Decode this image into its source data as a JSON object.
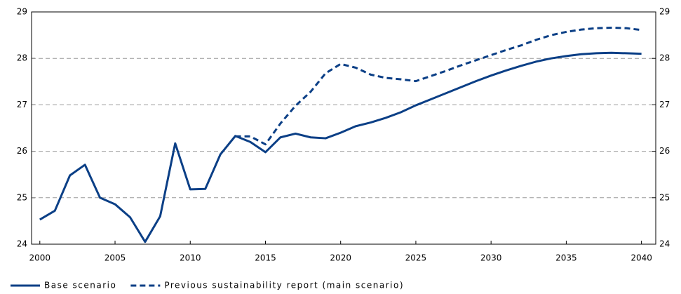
{
  "chart_data": {
    "type": "line",
    "x": [
      2000,
      2001,
      2002,
      2003,
      2004,
      2005,
      2006,
      2007,
      2008,
      2009,
      2010,
      2011,
      2012,
      2013,
      2014,
      2015,
      2016,
      2017,
      2018,
      2019,
      2020,
      2021,
      2022,
      2023,
      2024,
      2025,
      2026,
      2027,
      2028,
      2029,
      2030,
      2031,
      2032,
      2033,
      2034,
      2035,
      2036,
      2037,
      2038,
      2039,
      2040
    ],
    "series": [
      {
        "name": "Base scenario",
        "color": "#0b3f86",
        "dash": false,
        "values": [
          24.53,
          24.72,
          25.48,
          25.71,
          25.0,
          24.86,
          24.58,
          24.05,
          24.6,
          26.17,
          25.18,
          25.19,
          25.93,
          26.33,
          26.2,
          25.98,
          26.3,
          26.38,
          26.3,
          26.28,
          26.4,
          26.54,
          26.62,
          26.72,
          26.84,
          26.99,
          27.12,
          27.25,
          27.38,
          27.51,
          27.63,
          27.74,
          27.84,
          27.93,
          28.0,
          28.05,
          28.09,
          28.11,
          28.12,
          28.11,
          28.1
        ]
      },
      {
        "name": "Previous sustainability report (main scenario)",
        "color": "#0b3f86",
        "dash": true,
        "values": [
          null,
          null,
          null,
          null,
          null,
          null,
          null,
          null,
          null,
          null,
          null,
          null,
          null,
          26.32,
          26.32,
          26.15,
          26.6,
          26.98,
          27.28,
          27.68,
          27.88,
          27.8,
          27.65,
          27.58,
          27.55,
          27.51,
          27.62,
          27.73,
          27.85,
          27.96,
          28.07,
          28.18,
          28.28,
          28.4,
          28.5,
          28.57,
          28.62,
          28.65,
          28.66,
          28.65,
          28.61
        ]
      }
    ],
    "xlim": [
      1999.45,
      2040.95
    ],
    "xticks": [
      2000,
      2005,
      2010,
      2015,
      2020,
      2025,
      2030,
      2035,
      2040
    ],
    "ylim": [
      24,
      29
    ],
    "yticks": [
      24,
      25,
      26,
      27,
      28,
      29
    ],
    "y2lim": [
      24,
      29
    ],
    "y2ticks": [
      24,
      25,
      26,
      27,
      28,
      29
    ],
    "grid": true,
    "legend": "bottom"
  }
}
